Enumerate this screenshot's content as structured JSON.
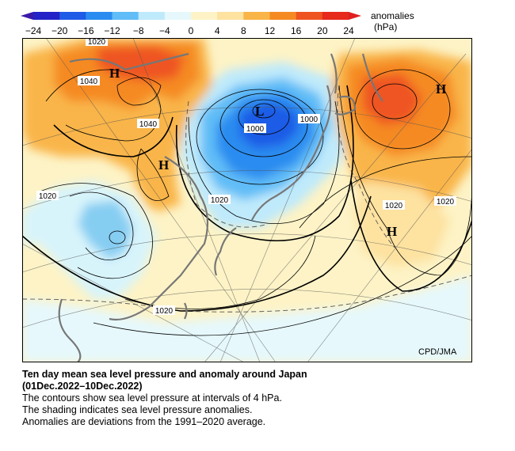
{
  "colorbar": {
    "unit_label": "anomalies",
    "unit": "(hPa)",
    "ticks": [
      "−24",
      "−20",
      "−16",
      "−12",
      "−8",
      "−4",
      "0",
      "4",
      "8",
      "12",
      "16",
      "20",
      "24"
    ],
    "colors": [
      "#2323c8",
      "#1e5be6",
      "#2a8cf0",
      "#60bdf7",
      "#bfeafb",
      "#e6f8fc",
      "#fdf3c6",
      "#fde2a0",
      "#f9b548",
      "#f58a23",
      "#ef5420",
      "#e62a1b"
    ]
  },
  "map": {
    "pressure_labels": [
      "1020",
      "1040",
      "1040",
      "1000",
      "1000",
      "1020",
      "1020",
      "1020",
      "1020",
      "1020"
    ],
    "high_labels": [
      "H",
      "H",
      "H",
      "H"
    ],
    "low_label": "L",
    "credit": "CPD/JMA"
  },
  "caption": {
    "title_line1": "Ten day mean sea level pressure and anomaly around Japan",
    "title_line2": "(01Dec.2022–10Dec.2022)",
    "line1": "The contours show sea level pressure at intervals of 4 hPa.",
    "line2": "The shading indicates sea level pressure anomalies.",
    "line3": "Anomalies are deviations from the 1991–2020 average."
  }
}
